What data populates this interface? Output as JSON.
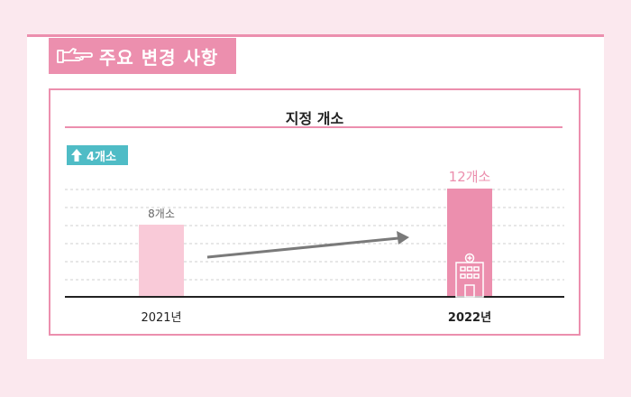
{
  "header": {
    "icon": "pointing-hand-icon",
    "title": "주요 변경 사항"
  },
  "panel": {
    "title": "지정 개소",
    "increase_badge": {
      "icon": "up-arrow-icon",
      "label": "4개소"
    }
  },
  "chart_data": {
    "type": "bar",
    "categories": [
      "2021년",
      "2022년"
    ],
    "values": [
      8,
      12
    ],
    "data_labels": [
      "8개소",
      "12개소"
    ],
    "ylim": [
      0,
      14
    ],
    "grid": true,
    "annotations": [
      "trend-arrow",
      "hospital-icon"
    ]
  },
  "colors": {
    "background": "#fbe8ee",
    "accent": "#ec8fae",
    "bar_2021": "#f9cad8",
    "bar_2022": "#ec8fae",
    "badge": "#4fbcc6",
    "arrow": "#7a7a7a"
  }
}
